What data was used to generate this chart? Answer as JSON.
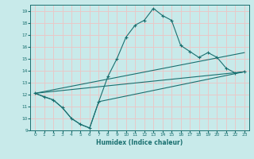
{
  "title": "",
  "xlabel": "Humidex (Indice chaleur)",
  "ylabel": "",
  "xlim": [
    -0.5,
    23.5
  ],
  "ylim": [
    9,
    19.5
  ],
  "yticks": [
    9,
    10,
    11,
    12,
    13,
    14,
    15,
    16,
    17,
    18,
    19
  ],
  "xticks": [
    0,
    1,
    2,
    3,
    4,
    5,
    6,
    7,
    8,
    9,
    10,
    11,
    12,
    13,
    14,
    15,
    16,
    17,
    18,
    19,
    20,
    21,
    22,
    23
  ],
  "bg_color": "#c8eaea",
  "line_color": "#1a7070",
  "grid_color": "#e8c8c8",
  "line1_x": [
    0,
    1,
    2,
    3,
    4,
    5,
    6,
    7,
    8,
    9,
    10,
    11,
    12,
    13,
    14,
    15,
    16,
    17,
    18,
    19,
    20,
    21,
    22,
    23
  ],
  "line1_y": [
    12.1,
    11.8,
    11.55,
    10.9,
    10.0,
    9.5,
    9.2,
    11.4,
    13.5,
    15.0,
    16.8,
    17.8,
    18.2,
    19.2,
    18.6,
    18.2,
    16.1,
    15.6,
    15.1,
    15.5,
    15.1,
    14.2,
    13.8,
    13.9
  ],
  "line2_x": [
    0,
    2,
    3,
    4,
    5,
    6,
    7,
    23
  ],
  "line2_y": [
    12.1,
    11.55,
    10.9,
    10.0,
    9.5,
    9.2,
    11.4,
    13.9
  ],
  "line3_x": [
    0,
    23
  ],
  "line3_y": [
    12.1,
    15.5
  ],
  "line4_x": [
    0,
    23
  ],
  "line4_y": [
    12.1,
    13.9
  ]
}
